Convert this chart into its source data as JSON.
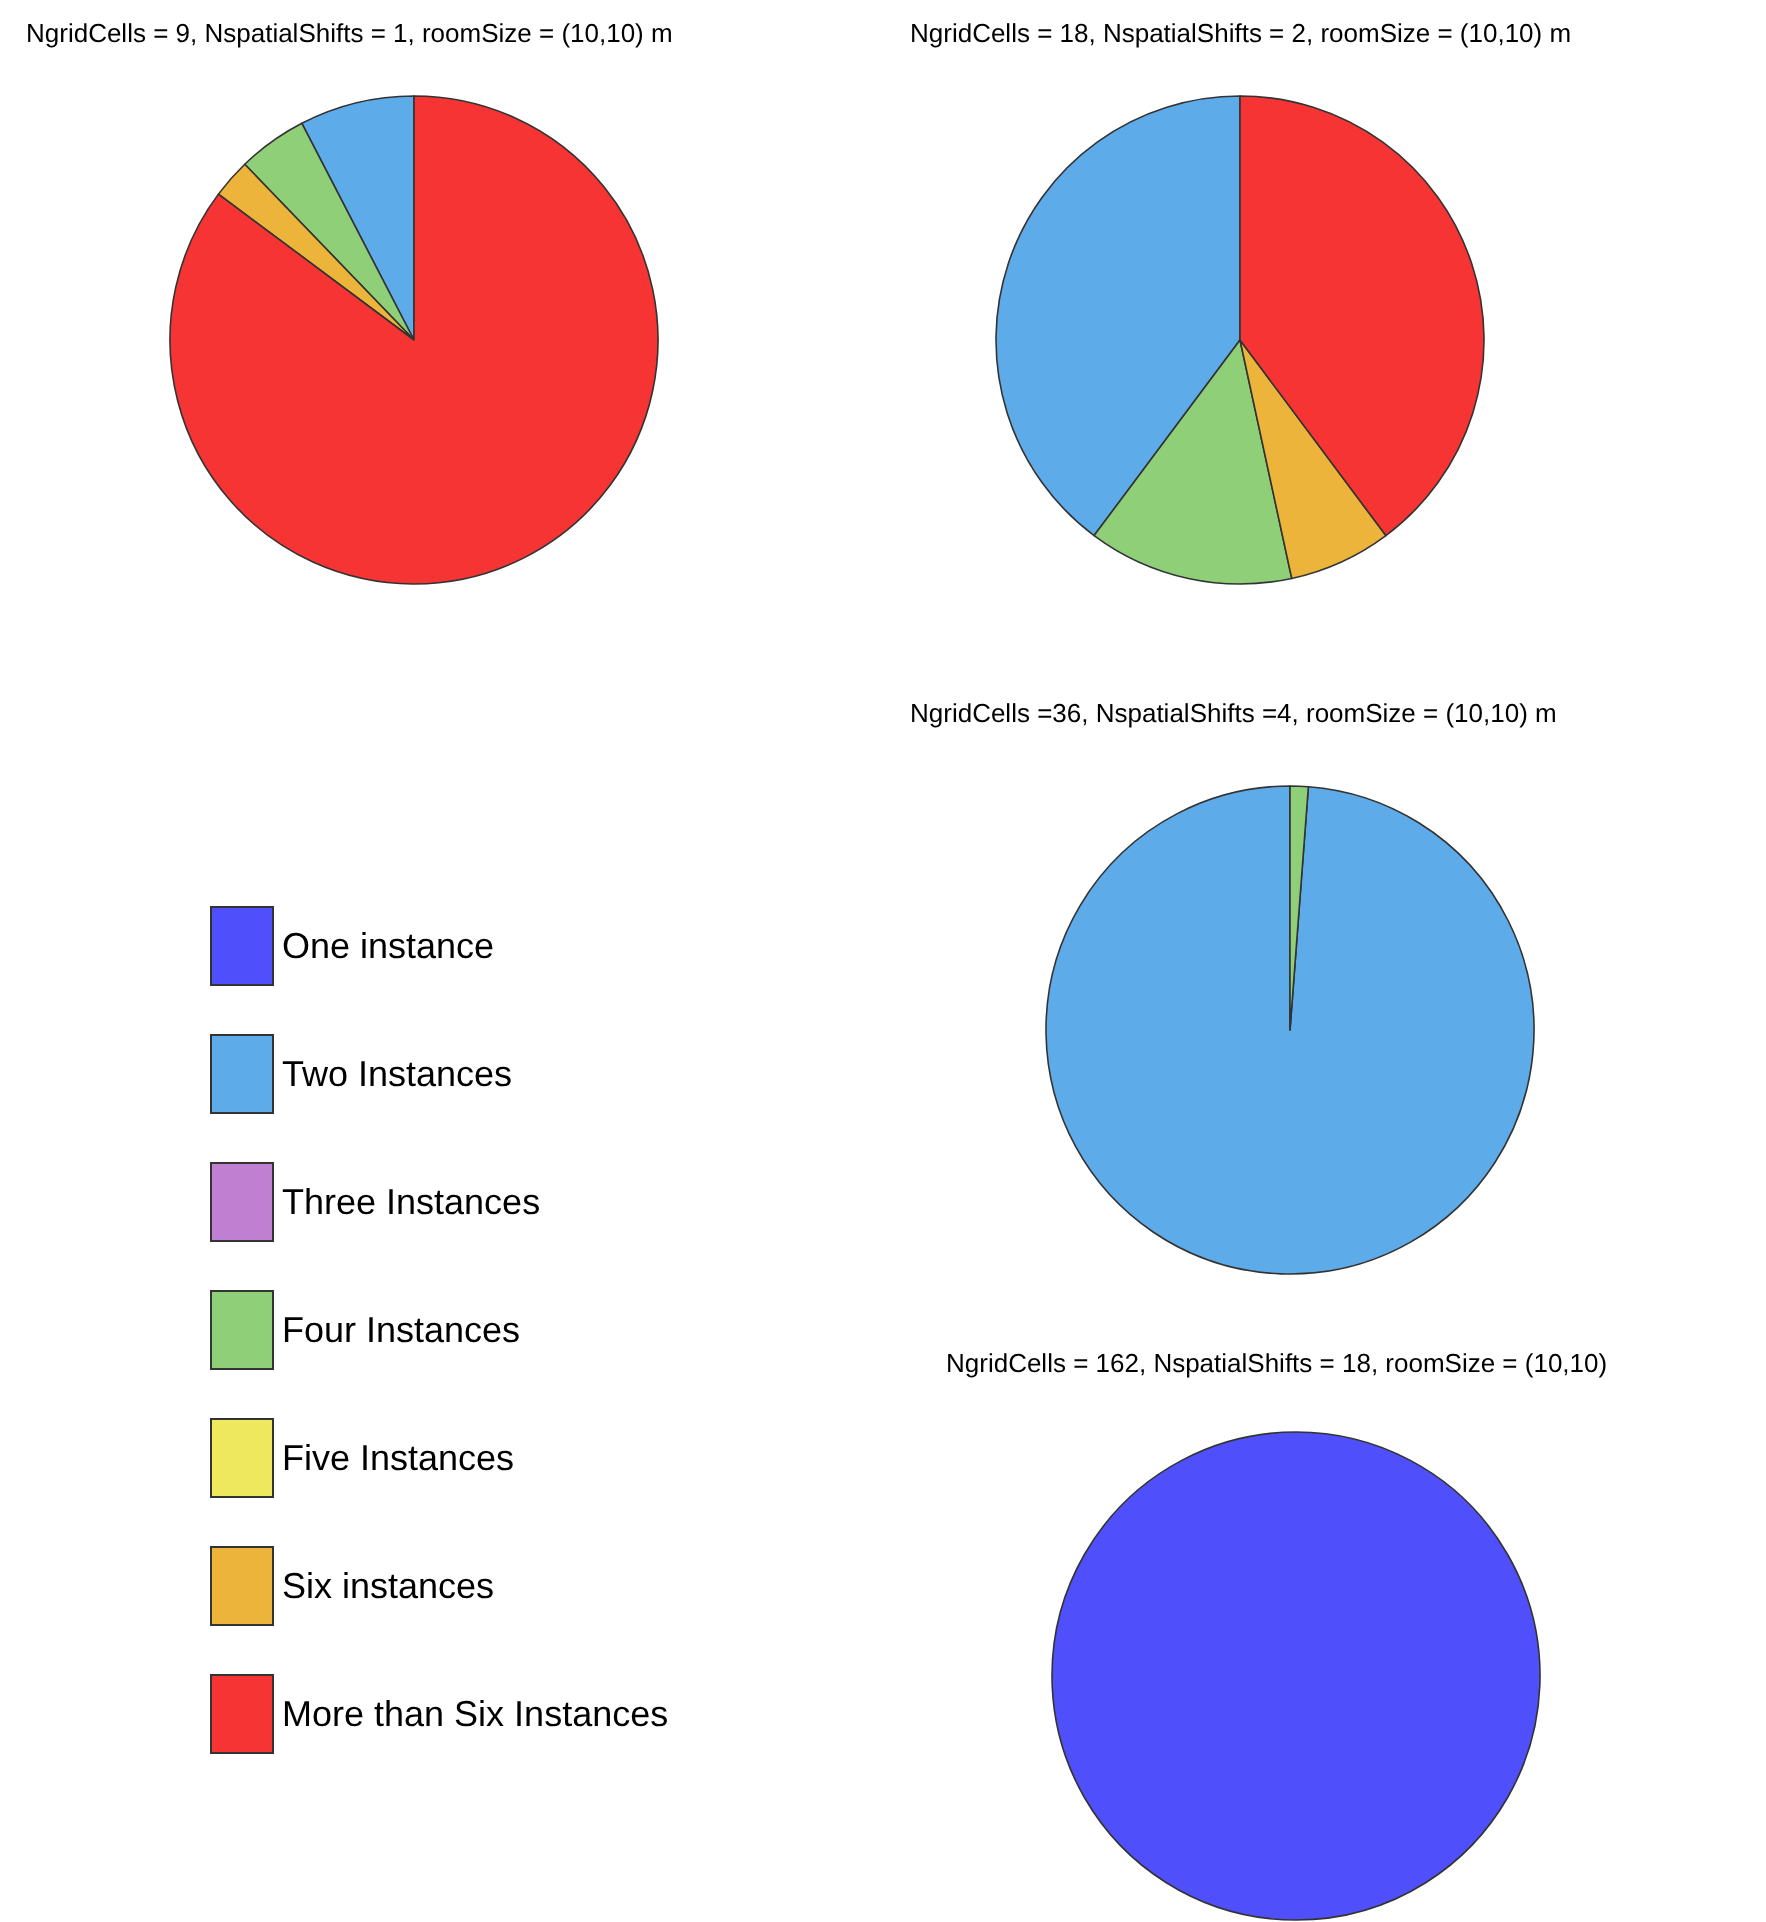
{
  "chart_data": [
    {
      "type": "pie",
      "title": "NgridCells = 9, NspatialShifts = 1, roomSize = (10,10) m",
      "categories": [
        "One instance",
        "Two Instances",
        "Three Instances",
        "Four Instances",
        "Five Instances",
        "Six instances",
        "More than Six Instances"
      ],
      "values": [
        0,
        7.6,
        0,
        4.6,
        0,
        2.6,
        85.2
      ],
      "colors": [
        "#4f4ffb",
        "#5eabea",
        "#c07fd0",
        "#8ecf78",
        "#eee85e",
        "#ecb43a",
        "#f73434"
      ],
      "legend": "bottom"
    },
    {
      "type": "pie",
      "title": "NgridCells = 18, NspatialShifts = 2, roomSize = (10,10) m",
      "categories": [
        null,
        null,
        null,
        null,
        null,
        null,
        null
      ],
      "values": [
        0,
        39.8,
        0,
        13.6,
        0,
        6.8,
        39.8
      ],
      "colors": [
        "#4f4ffb",
        "#5eabea",
        "#c07fd0",
        "#8ecf78",
        "#eee85e",
        "#ecb43a",
        "#f73434"
      ]
    },
    {
      "type": "pie",
      "title": "NgridCells =36, NspatialShifts =4, roomSize = (10,10) m",
      "categories": [
        null,
        null,
        null,
        null,
        null,
        null,
        null
      ],
      "values": [
        0,
        98.8,
        0,
        1.2,
        0,
        0,
        0
      ],
      "colors": [
        "#4f4ffb",
        "#5eabea",
        "#c07fd0",
        "#8ecf78",
        "#eee85e",
        "#ecb43a",
        "#f73434"
      ]
    },
    {
      "type": "pie",
      "title": "NgridCells = 162, NspatialShifts = 18, roomSize = (10,10)",
      "categories": [
        null,
        null,
        null,
        null,
        null,
        null,
        null
      ],
      "values": [
        100,
        0,
        0,
        0,
        0,
        0,
        0
      ],
      "colors": [
        "#4f4ffb",
        "#5eabea",
        "#c07fd0",
        "#8ecf78",
        "#eee85e",
        "#ecb43a",
        "#f73434"
      ]
    }
  ]
}
